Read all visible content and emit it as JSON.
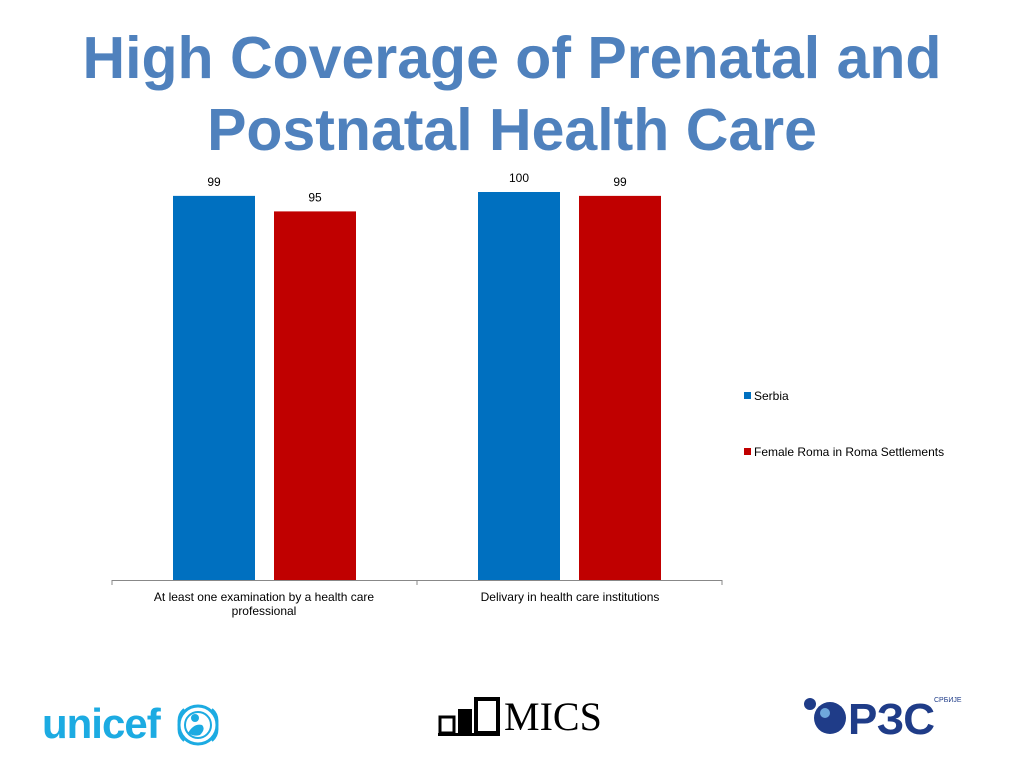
{
  "slide": {
    "title_line1": "High Coverage of Prenatal and",
    "title_line2": "Postnatal Health Care"
  },
  "chart_data": {
    "type": "bar",
    "categories": [
      "At least one examination by a health care professional",
      "Delivary in health care institutions"
    ],
    "series": [
      {
        "name": "Serbia",
        "values": [
          99,
          100
        ],
        "color": "#0070c0"
      },
      {
        "name": "Female Roma in Roma Settlements",
        "values": [
          95,
          99
        ],
        "color": "#c00000"
      }
    ],
    "data_labels": [
      [
        "99",
        "100"
      ],
      [
        "95",
        "99"
      ]
    ],
    "ylim": [
      0,
      100
    ],
    "legend_position": "right",
    "grid": false
  },
  "logos": {
    "unicef_text": "unicef",
    "mics_text": "MICS",
    "rzs_text": "РЗС",
    "rzs_small_text": "СРБИЈЕ"
  }
}
